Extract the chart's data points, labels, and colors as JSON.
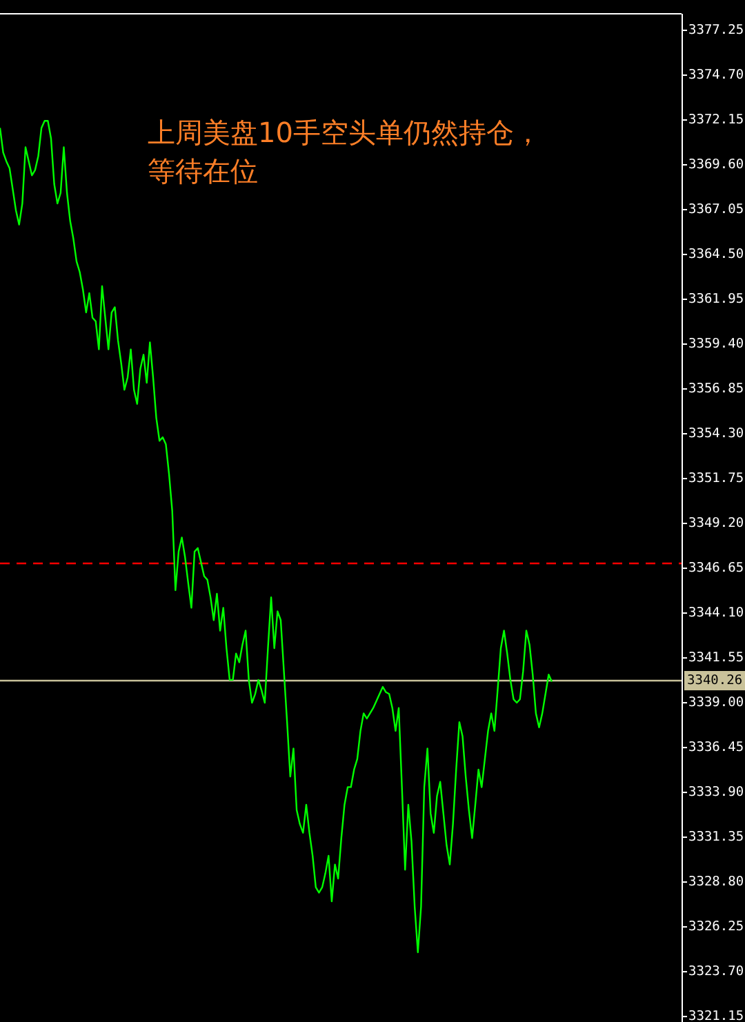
{
  "chart_data": {
    "type": "line",
    "annotations": [
      "上周美盘10手空头单仍然持仓，等待在位"
    ],
    "categories": [
      null,
      null,
      null,
      null,
      null,
      null,
      null,
      null,
      null,
      null,
      null,
      null,
      null,
      null,
      null,
      null,
      null,
      null,
      null,
      null,
      null,
      null,
      null,
      null,
      null,
      null,
      null,
      null,
      null,
      null,
      null,
      null,
      null,
      null,
      null,
      null,
      null,
      null,
      null,
      null,
      null,
      null,
      null,
      null,
      null,
      null,
      null,
      null,
      null,
      null,
      null,
      null,
      null,
      null,
      null,
      null,
      null,
      null,
      null,
      null,
      null,
      null,
      null,
      null,
      null,
      null,
      null,
      null,
      null,
      null,
      null,
      null,
      null,
      null,
      null,
      null,
      null,
      null,
      null,
      null,
      null,
      null,
      null,
      null,
      null,
      null,
      null,
      null,
      null,
      null,
      null,
      null,
      null,
      null,
      null,
      null,
      null,
      null,
      null,
      null,
      null,
      null,
      null,
      null,
      null,
      null,
      null,
      null,
      null,
      null,
      null,
      null,
      null,
      null,
      null,
      null,
      null,
      null,
      null,
      null,
      null,
      null,
      null,
      null,
      null,
      null,
      null,
      null,
      null,
      null,
      null,
      null,
      null,
      null,
      null,
      null,
      null,
      null,
      null,
      null,
      null,
      null,
      null,
      null,
      null,
      null,
      null,
      null,
      null,
      null,
      null,
      null,
      null,
      null,
      null,
      null,
      null,
      null,
      null,
      null,
      null,
      null,
      null,
      null,
      null,
      null,
      null,
      null,
      null,
      null,
      null,
      null,
      null,
      null
    ],
    "series": [
      {
        "color": "#00ff00",
        "values": [
          3371.7,
          3370.3,
          3369.8,
          3369.4,
          3368.2,
          3367.0,
          3366.2,
          3367.4,
          3370.6,
          3369.8,
          3369.0,
          3369.3,
          3370.1,
          3371.7,
          3372.1,
          3372.1,
          3371.1,
          3368.5,
          3367.4,
          3368.0,
          3370.6,
          3368.0,
          3366.4,
          3365.4,
          3364.1,
          3363.5,
          3362.5,
          3361.2,
          3362.3,
          3360.9,
          3360.7,
          3359.1,
          3362.7,
          3360.9,
          3359.1,
          3361.2,
          3361.5,
          3359.6,
          3358.3,
          3356.8,
          3357.5,
          3359.1,
          3356.8,
          3356.0,
          3358.0,
          3358.8,
          3357.2,
          3359.5,
          3357.5,
          3355.2,
          3353.9,
          3354.1,
          3353.7,
          3352.0,
          3349.9,
          3345.4,
          3347.6,
          3348.4,
          3347.3,
          3345.8,
          3344.4,
          3347.6,
          3347.8,
          3347.0,
          3346.2,
          3346.0,
          3345.0,
          3343.7,
          3345.2,
          3343.1,
          3344.4,
          3342.1,
          3340.3,
          3340.3,
          3341.8,
          3341.3,
          3342.3,
          3343.1,
          3340.3,
          3339.0,
          3339.5,
          3340.3,
          3339.7,
          3339.0,
          3342.1,
          3345.0,
          3342.1,
          3344.2,
          3343.7,
          3340.8,
          3337.9,
          3334.8,
          3336.4,
          3332.9,
          3332.1,
          3331.6,
          3333.2,
          3331.6,
          3330.3,
          3328.5,
          3328.2,
          3328.5,
          3329.3,
          3330.3,
          3327.7,
          3329.8,
          3329.0,
          3331.3,
          3333.2,
          3334.2,
          3334.2,
          3335.2,
          3335.8,
          3337.4,
          3338.4,
          3338.1,
          3338.4,
          3338.7,
          3339.1,
          3339.5,
          3339.9,
          3339.6,
          3339.5,
          3338.7,
          3337.4,
          3338.7,
          3334.2,
          3329.5,
          3333.2,
          3331.1,
          3327.4,
          3324.8,
          3327.4,
          3334.2,
          3336.4,
          3332.7,
          3331.6,
          3333.7,
          3334.5,
          3332.7,
          3330.9,
          3329.8,
          3332.1,
          3335.2,
          3337.9,
          3337.1,
          3334.8,
          3332.9,
          3331.3,
          3333.2,
          3335.2,
          3334.2,
          3335.8,
          3337.4,
          3338.4,
          3337.4,
          3339.7,
          3342.1,
          3343.1,
          3341.8,
          3340.3,
          3339.2,
          3339.0,
          3339.2,
          3340.8,
          3343.1,
          3342.3,
          3340.6,
          3338.4,
          3337.6,
          3338.4,
          3339.5,
          3340.6,
          3340.2
        ]
      }
    ],
    "ylim": [
      3320.84,
      3378.19
    ],
    "yticks": [
      {
        "value": 3321.15,
        "label": "3321.15"
      },
      {
        "value": 3323.7,
        "label": "3323.70"
      },
      {
        "value": 3326.25,
        "label": "3326.25"
      },
      {
        "value": 3328.8,
        "label": "3328.80"
      },
      {
        "value": 3331.35,
        "label": "3331.35"
      },
      {
        "value": 3333.9,
        "label": "3333.90"
      },
      {
        "value": 3336.45,
        "label": "3336.45"
      },
      {
        "value": 3339.0,
        "label": "3339.00"
      },
      {
        "value": 3341.55,
        "label": "3341.55"
      },
      {
        "value": 3344.1,
        "label": "3344.10"
      },
      {
        "value": 3346.65,
        "label": "3346.65"
      },
      {
        "value": 3349.2,
        "label": "3349.20"
      },
      {
        "value": 3351.75,
        "label": "3351.75"
      },
      {
        "value": 3354.3,
        "label": "3354.30"
      },
      {
        "value": 3356.85,
        "label": "3356.85"
      },
      {
        "value": 3359.4,
        "label": "3359.40"
      },
      {
        "value": 3361.95,
        "label": "3361.95"
      },
      {
        "value": 3364.5,
        "label": "3364.50"
      },
      {
        "value": 3367.05,
        "label": "3367.05"
      },
      {
        "value": 3369.6,
        "label": "3369.60"
      },
      {
        "value": 3372.15,
        "label": "3372.15"
      },
      {
        "value": 3374.7,
        "label": "3374.70"
      },
      {
        "value": 3377.25,
        "label": "3377.25"
      }
    ],
    "ref_lines": [
      {
        "axis": "y",
        "value": 3347.0,
        "color": "#ff0000",
        "line_style": "dashed"
      },
      {
        "axis": "y",
        "value": 3340.26,
        "label": "3340.26",
        "color": "#c9c29a"
      }
    ],
    "tick_labels": "y"
  }
}
